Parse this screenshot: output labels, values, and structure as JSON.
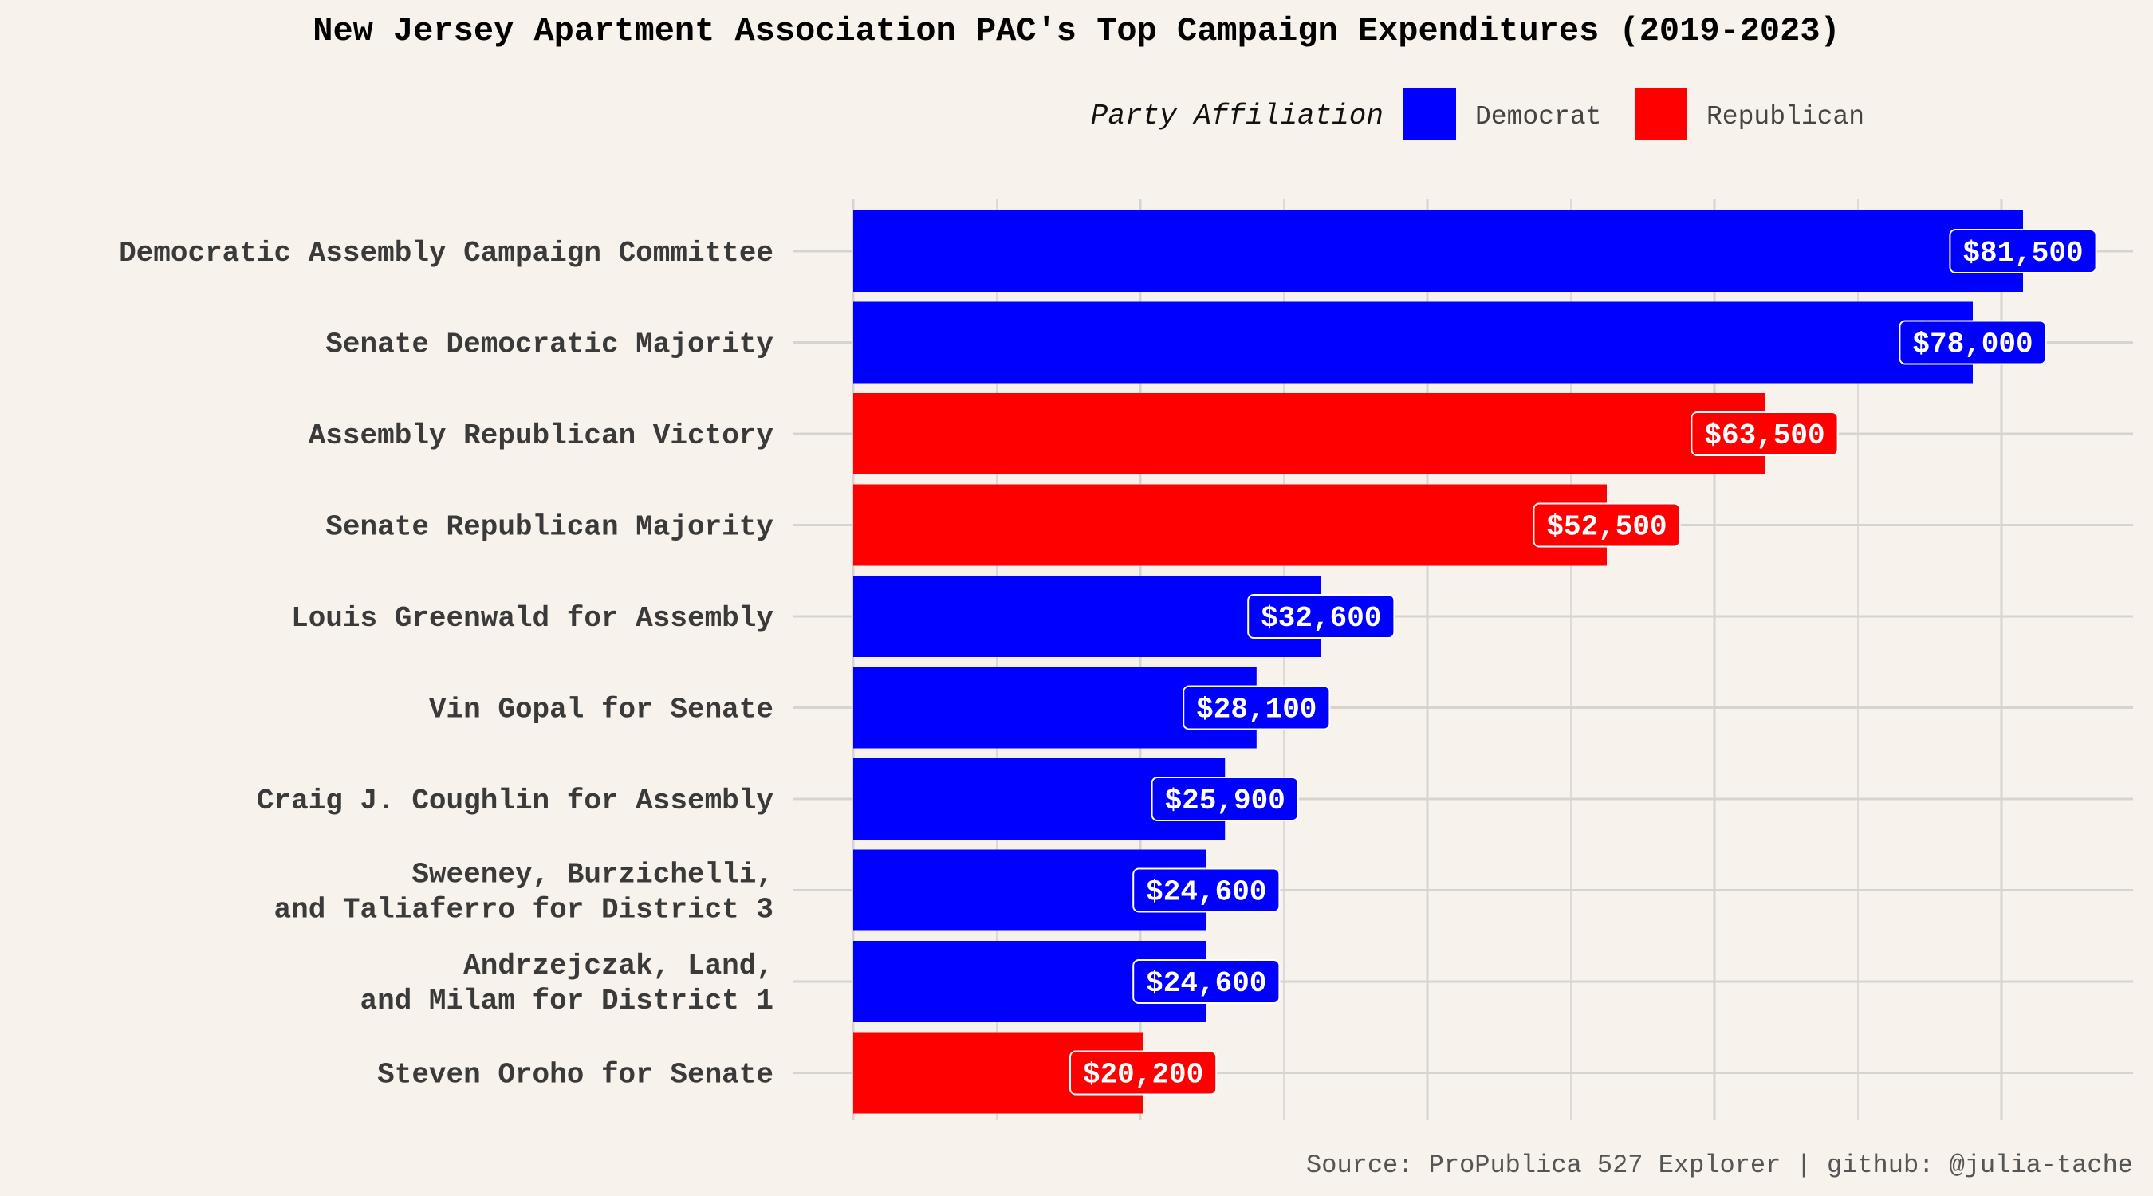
{
  "colors": {
    "Democrat": "#0000ff",
    "Republican": "#ff0000",
    "background": "#f8f2ec"
  },
  "legend": {
    "title": "Party Affiliation",
    "items": [
      {
        "label": "Democrat",
        "color": "#0000ff"
      },
      {
        "label": "Republican",
        "color": "#ff0000"
      }
    ],
    "placement": "top-right"
  },
  "caption": "Source: ProPublica 527 Explorer | github: @julia-tache",
  "chart_data": {
    "type": "bar",
    "orientation": "horizontal",
    "title": "New Jersey Apartment Association PAC's Top Campaign Expenditures (2019-2023)",
    "xlabel": "",
    "ylabel": "",
    "xlim": [
      0,
      85000
    ],
    "grid": true,
    "categories": [
      [
        "Democratic Assembly Campaign Committee"
      ],
      [
        "Senate Democratic Majority"
      ],
      [
        "Assembly Republican Victory"
      ],
      [
        "Senate Republican Majority"
      ],
      [
        "Louis Greenwald for Assembly"
      ],
      [
        "Vin Gopal for Senate"
      ],
      [
        "Craig J. Coughlin for Assembly"
      ],
      [
        "Sweeney, Burzichelli,",
        "and Taliaferro for District 3"
      ],
      [
        "Andrzejczak, Land,",
        "and Milam for District 1"
      ],
      [
        "Steven Oroho for Senate"
      ]
    ],
    "values": [
      81500,
      78000,
      63500,
      52500,
      32600,
      28100,
      25900,
      24600,
      24600,
      20200
    ],
    "labels": [
      "$81,500",
      "$78,000",
      "$63,500",
      "$52,500",
      "$32,600",
      "$28,100",
      "$25,900",
      "$24,600",
      "$24,600",
      "$20,200"
    ],
    "party": [
      "Democrat",
      "Democrat",
      "Republican",
      "Republican",
      "Democrat",
      "Democrat",
      "Democrat",
      "Democrat",
      "Democrat",
      "Republican"
    ]
  }
}
